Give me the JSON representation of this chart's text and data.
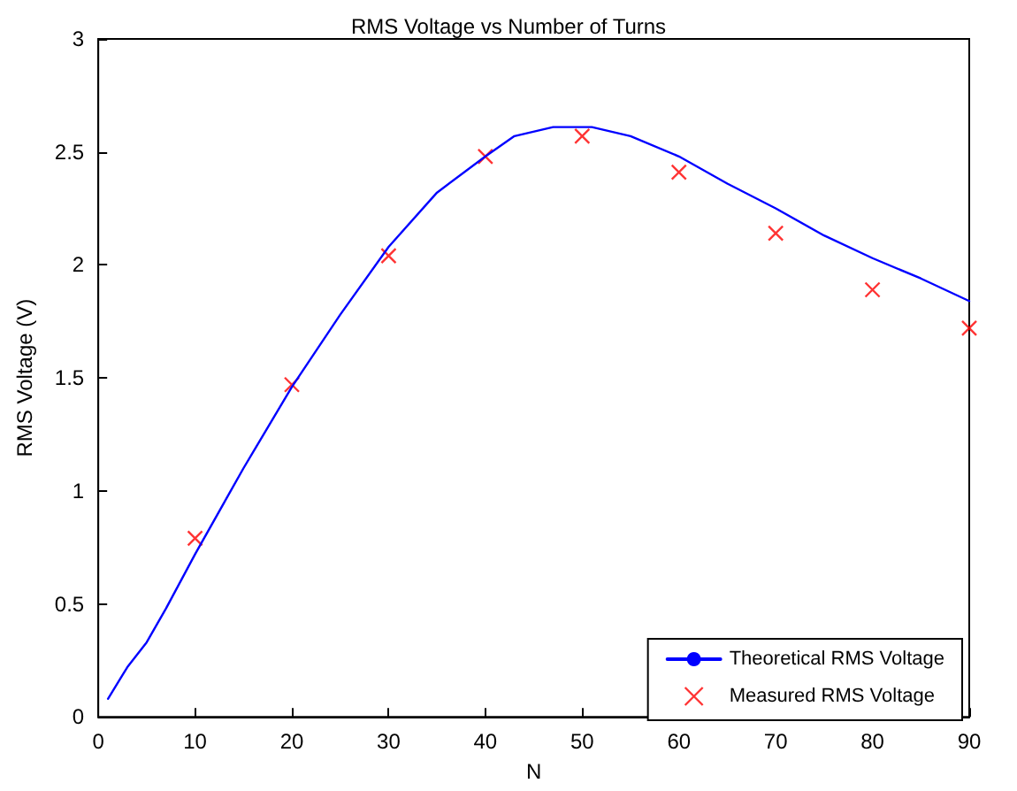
{
  "chart_data": {
    "type": "line",
    "title": "RMS Voltage vs Number of Turns",
    "xlabel": "N",
    "ylabel": "RMS Voltage (V)",
    "xlim": [
      0,
      90
    ],
    "xticks": [
      0,
      10,
      20,
      30,
      40,
      50,
      60,
      70,
      80,
      90
    ],
    "ylim": [
      0,
      3
    ],
    "yticks": [
      0,
      0.5,
      1,
      1.5,
      2,
      2.5,
      3
    ],
    "grid": false,
    "legend": "bottom right",
    "series": [
      {
        "name": "Theoretical RMS Voltage",
        "color": "#0000ff",
        "marker": "none",
        "line_style": "solid",
        "x": [
          1,
          3,
          5,
          7,
          10,
          15,
          20,
          25,
          30,
          35,
          40,
          43,
          47,
          51,
          55,
          60,
          65,
          70,
          75,
          80,
          85,
          90
        ],
        "values": [
          0.08,
          0.22,
          0.33,
          0.48,
          0.72,
          1.1,
          1.46,
          1.78,
          2.08,
          2.32,
          2.48,
          2.57,
          2.61,
          2.61,
          2.57,
          2.48,
          2.36,
          2.25,
          2.13,
          2.03,
          1.94,
          1.84
        ]
      },
      {
        "name": "Measured RMS Voltage",
        "type": "scatter",
        "color": "#ff0000",
        "marker": "cross",
        "x": [
          10,
          20,
          30,
          40,
          50,
          60,
          70,
          80,
          90
        ],
        "values": [
          0.79,
          1.47,
          2.04,
          2.48,
          2.57,
          2.41,
          2.14,
          1.89,
          1.72
        ]
      }
    ]
  }
}
